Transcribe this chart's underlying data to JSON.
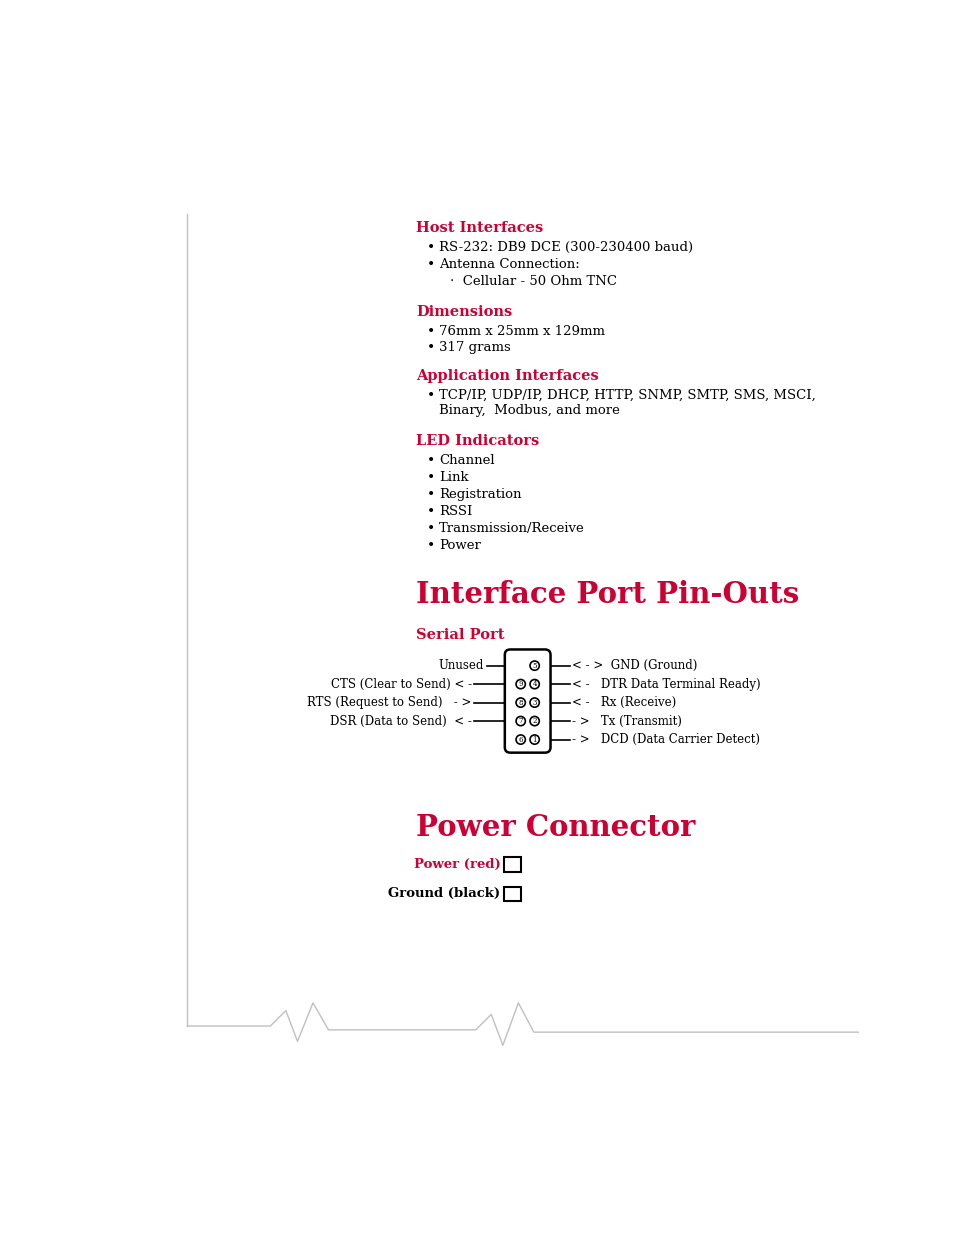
{
  "bg_color": "#ffffff",
  "red_color": "#cc0033",
  "black_color": "#000000",
  "light_gray": "#c0c0c0",
  "page_title": "Interface Port Pin-Outs",
  "serial_port_title": "Serial Port",
  "power_connector_title": "Power Connector",
  "host_interfaces_title": "Host Interfaces",
  "dimensions_title": "Dimensions",
  "app_interfaces_title": "Application Interfaces",
  "led_indicators_title": "LED Indicators",
  "bullet_items_host": [
    "RS-232: DB9 DCE (300-230400 baud)",
    "Antenna Connection:"
  ],
  "sub_bullet_host": "Cellular - 50 Ohm TNC",
  "bullet_items_dimensions": [
    "76mm x 25mm x 129mm",
    "317 grams"
  ],
  "bullet_items_led": [
    "Channel",
    "Link",
    "Registration",
    "RSSI",
    "Transmission/Receive",
    "Power"
  ],
  "left_labels": [
    "Unused",
    "CTS (Clear to Send) < -",
    "RTS (Request to Send)   - >",
    "DSR (Data to Send)  < -"
  ],
  "right_labels": [
    "< - >  GND (Ground)",
    "< -    DTR Data Terminal Ready)",
    "< -    Rx (Receive)",
    "- >    Tx (Transmit)",
    "- >    DCD (Data Carrier Detect)"
  ],
  "left_pin_nums": [
    "9",
    "8",
    "7",
    "6"
  ],
  "right_pin_nums": [
    "5",
    "4",
    "3",
    "2",
    "1"
  ],
  "power_red_label": "Power (red)",
  "power_black_label": "Ground (black)"
}
